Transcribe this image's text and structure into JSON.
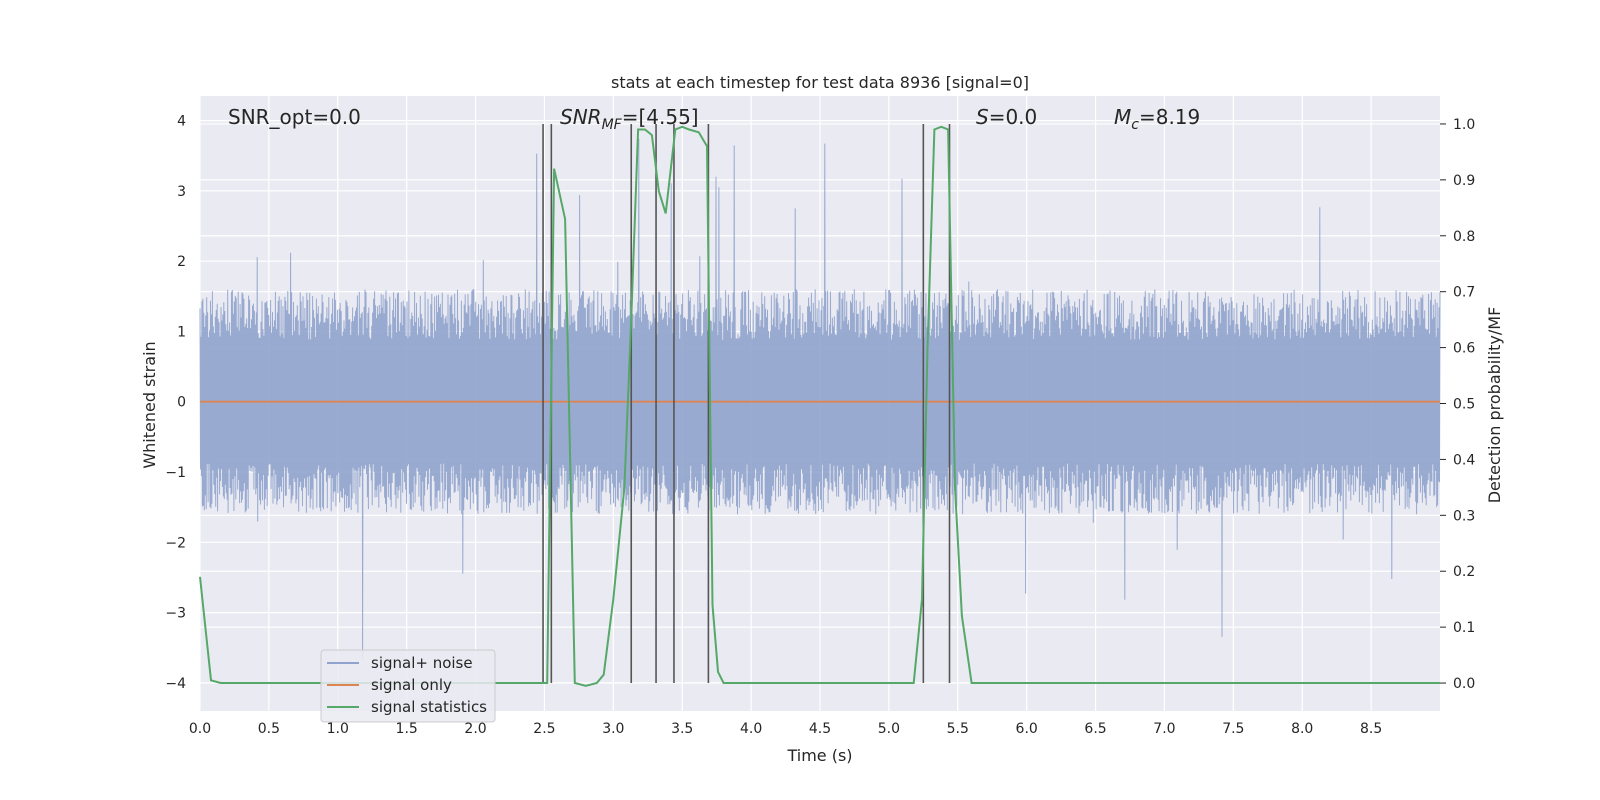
{
  "chart_data": {
    "type": "line",
    "title": "stats at each timestep for test data 8936 [signal=0]",
    "xlabel": "Time (s)",
    "ylabel": "Whitened strain",
    "y2label": "Detection probability/MF",
    "xlim": [
      0,
      9.0
    ],
    "ylim": [
      -4.4,
      4.35
    ],
    "y2lim": [
      -0.05,
      1.05
    ],
    "x_ticks": [
      "0.0",
      "0.5",
      "1.0",
      "1.5",
      "2.0",
      "2.5",
      "3.0",
      "3.5",
      "4.0",
      "4.5",
      "5.0",
      "5.5",
      "6.0",
      "6.5",
      "7.0",
      "7.5",
      "8.0",
      "8.5"
    ],
    "y_ticks": [
      "4",
      "3",
      "2",
      "1",
      "0",
      "−1",
      "−2",
      "−3",
      "−4"
    ],
    "y2_ticks": [
      "1.0",
      "0.9",
      "0.8",
      "0.7",
      "0.6",
      "0.5",
      "0.4",
      "0.3",
      "0.2",
      "0.1",
      "0.0"
    ],
    "grid": true,
    "legend_position": "lower-left",
    "annotations": {
      "snr_opt": "SNR_opt=0.0",
      "snr_mf_main": "SNR",
      "snr_mf_sub": "MF",
      "snr_mf_tail": "=[4.55]",
      "s_main": "S",
      "s_tail": "=0.0",
      "mc_main": "M",
      "mc_sub": "c",
      "mc_tail": "=8.19"
    },
    "series": [
      {
        "name": "signal+ noise",
        "color": "#8fa3cc",
        "description_values": "noise, approx. uniform amplitude envelope",
        "envelope": {
          "upper_typical": 1.6,
          "lower_typical": -1.6,
          "peak_max": 3.95,
          "peak_min": -3.65
        }
      },
      {
        "name": "signal only",
        "color": "#dd8452",
        "x": [
          0,
          9.0
        ],
        "y": [
          0,
          0
        ]
      },
      {
        "name": "signal statistics",
        "color": "#55a868",
        "axis": "right",
        "x": [
          0.0,
          0.08,
          0.15,
          2.4,
          2.48,
          2.52,
          2.57,
          2.65,
          2.72,
          2.8,
          2.88,
          2.93,
          3.0,
          3.08,
          3.13,
          3.18,
          3.23,
          3.28,
          3.33,
          3.38,
          3.45,
          3.5,
          3.55,
          3.62,
          3.68,
          3.72,
          3.76,
          3.8,
          3.86,
          5.0,
          5.18,
          5.24,
          5.28,
          5.33,
          5.38,
          5.43,
          5.48,
          5.53,
          5.6,
          9.0
        ],
        "y": [
          0.19,
          0.005,
          0.0,
          0.0,
          0.0,
          0.0,
          0.92,
          0.83,
          0.0,
          -0.005,
          0.0,
          0.015,
          0.15,
          0.35,
          0.65,
          0.99,
          0.99,
          0.98,
          0.88,
          0.84,
          0.99,
          0.995,
          0.99,
          0.985,
          0.96,
          0.14,
          0.02,
          0.0,
          0.0,
          0.0,
          0.0,
          0.15,
          0.6,
          0.99,
          0.995,
          0.99,
          0.35,
          0.12,
          0.0,
          0.0
        ]
      }
    ],
    "vertical_markers": [
      2.49,
      2.55,
      3.13,
      3.31,
      3.44,
      3.69,
      5.25,
      5.44
    ]
  }
}
